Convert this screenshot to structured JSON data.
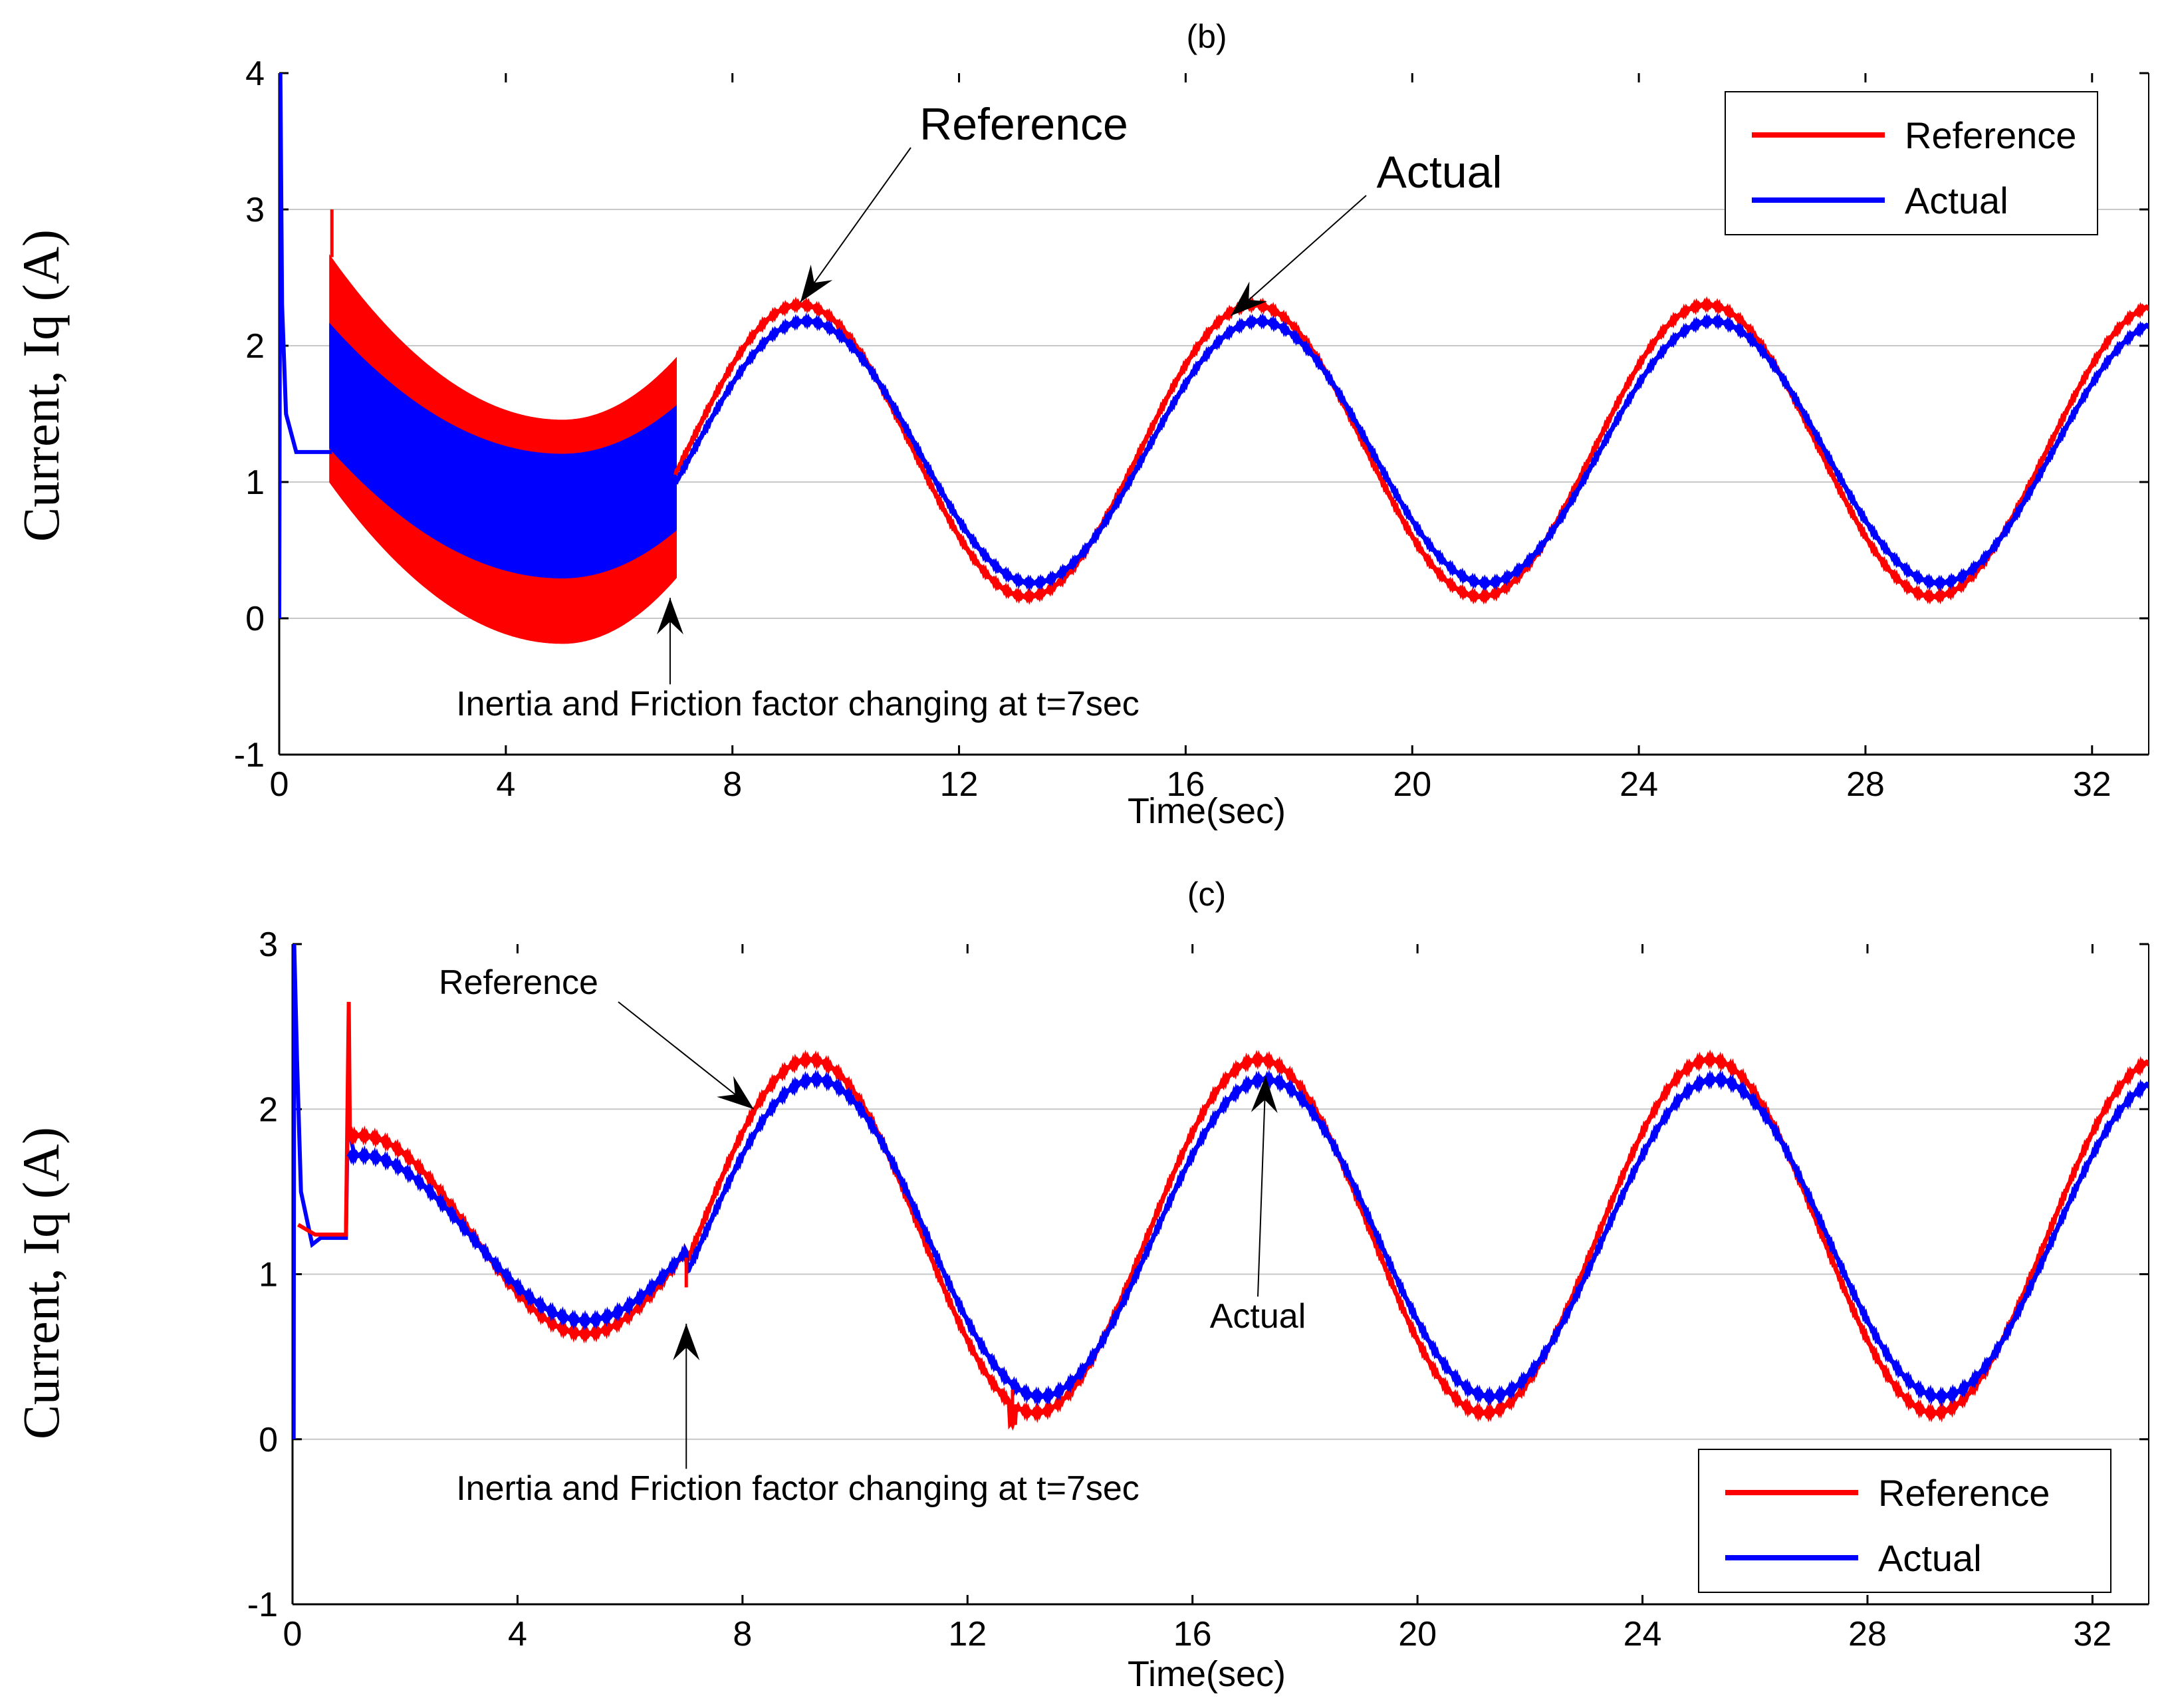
{
  "colors": {
    "reference": "#ff0000",
    "actual": "#0000ff",
    "grid": "#c8c8c8",
    "axis": "#000000"
  },
  "chart_data": [
    {
      "type": "line",
      "title": "(b)",
      "xlabel": "Time(sec)",
      "ylabel": "Current, Iq (A)",
      "xlim": [
        0,
        33
      ],
      "ylim": [
        -1,
        4
      ],
      "xticks": [
        0,
        4,
        8,
        12,
        16,
        20,
        24,
        28,
        32
      ],
      "yticks": [
        -1,
        0,
        1,
        2,
        3,
        4
      ],
      "grid": true,
      "legend_position": "top-right",
      "series": [
        {
          "name": "Reference",
          "color": "#ff0000",
          "description_points": {
            "initial_value": 1.22,
            "band_start": 0.9,
            "band_end": 7,
            "band_upper_start": 2.65,
            "band_upper_end": 1.9,
            "band_upper_min": 1.45,
            "band_lower_start": 1.0,
            "band_lower_end": 0.3,
            "band_lower_min": -0.18,
            "spike": 3.0,
            "sine_mean": 1.23,
            "sine_amplitude": 1.07,
            "sine_period": 8,
            "first_peak_t": 9.2
          }
        },
        {
          "name": "Actual",
          "color": "#0000ff",
          "description_points": {
            "initial_spike": 4.0,
            "initial_value": 1.22,
            "band_start": 0.9,
            "band_end": 7,
            "band_upper_start": 2.15,
            "band_upper_end": 1.55,
            "band_upper_min": 1.2,
            "band_lower_start": 1.25,
            "band_lower_end": 0.65,
            "band_lower_min": 0.3,
            "sine_mean": 1.22,
            "sine_amplitude": 0.96,
            "sine_period": 8,
            "first_peak_t": 9.3
          }
        }
      ],
      "annotations": [
        {
          "text": "Reference",
          "target_x": 9.2,
          "target_y": 2.32
        },
        {
          "text": "Actual",
          "target_x": 16.8,
          "target_y": 2.22
        },
        {
          "text": "Inertia and Friction factor changing at t=7sec",
          "target_x": 6.9,
          "target_y": 0.15
        }
      ]
    },
    {
      "type": "line",
      "title": "(c)",
      "xlabel": "Time(sec)",
      "ylabel": "Current, Iq (A)",
      "xlim": [
        0,
        33
      ],
      "ylim": [
        -1,
        3
      ],
      "xticks": [
        0,
        4,
        8,
        12,
        16,
        20,
        24,
        28,
        32
      ],
      "yticks": [
        -1,
        0,
        1,
        2,
        3
      ],
      "grid": true,
      "legend_position": "bottom-right",
      "series": [
        {
          "name": "Reference",
          "color": "#ff0000",
          "description_points": {
            "initial_value": 1.24,
            "spike_t": 1.0,
            "spike": 2.65,
            "slow_mean": 1.24,
            "slow_amplitude": 0.6,
            "slow_period": 8,
            "slow_peak_t": 1.2,
            "dip_t": 12.8,
            "dip_value": 0.1,
            "sine_mean": 1.23,
            "sine_amplitude": 1.07,
            "sine_period": 8,
            "first_peak_t": 9.2
          }
        },
        {
          "name": "Actual",
          "color": "#0000ff",
          "description_points": {
            "initial_spike": 3.0,
            "initial_value": 1.22,
            "slow_mean": 1.22,
            "slow_amplitude": 0.5,
            "slow_period": 8,
            "slow_peak_t": 1.2,
            "sine_mean": 1.22,
            "sine_amplitude": 0.96,
            "sine_period": 8,
            "first_peak_t": 9.3
          }
        }
      ],
      "annotations": [
        {
          "text": "Reference",
          "target_x": 8.2,
          "target_y": 2.0
        },
        {
          "text": "Actual",
          "target_x": 17.3,
          "target_y": 2.2
        },
        {
          "text": "Inertia and Friction factor changing at t=7sec",
          "target_x": 7.0,
          "target_y": 0.7
        }
      ]
    }
  ]
}
